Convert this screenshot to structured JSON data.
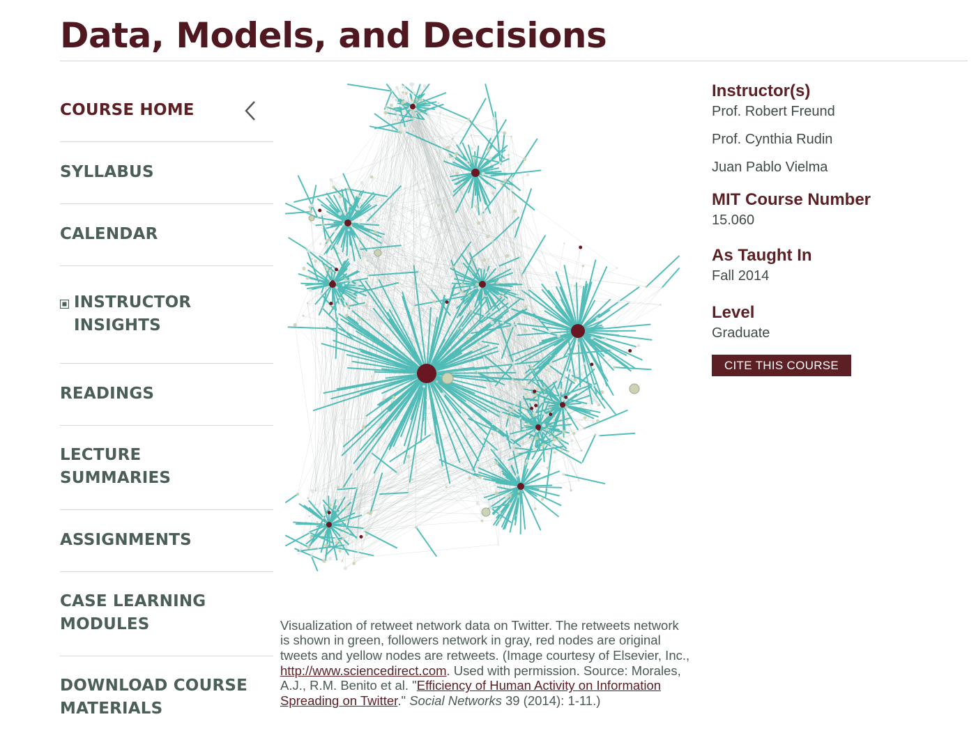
{
  "page": {
    "title": "Data, Models, and Decisions"
  },
  "sidebar": {
    "items": [
      {
        "label": "COURSE HOME"
      },
      {
        "label": "SYLLABUS"
      },
      {
        "label": "CALENDAR"
      },
      {
        "label": "INSTRUCTOR INSIGHTS"
      },
      {
        "label": "READINGS"
      },
      {
        "label": "LECTURE SUMMARIES"
      },
      {
        "label": "ASSIGNMENTS"
      },
      {
        "label": "CASE LEARNING MODULES"
      },
      {
        "label": "DOWNLOAD COURSE MATERIALS"
      }
    ]
  },
  "caption": {
    "part1": "Visualization of retweet network data on Twitter. The retweets network is shown in green, followers network in gray, red nodes are original tweets and yellow nodes are retweets. (Image courtesy of Elsevier, Inc., ",
    "link1": "http://www.sciencedirect.com",
    "part2": ". Used with permission. Source: Morales, A.J., R.M. Benito et al. \"",
    "link2": "Efficiency of Human Activity on Information Spreading on Twitter",
    "part3": ".\" ",
    "journal": "Social Networks",
    "part4": " 39 (2014): 1-11.)"
  },
  "info": {
    "instructors_heading": "Instructor(s)",
    "instructors": [
      "Prof. Robert Freund",
      "Prof. Cynthia Rudin",
      "Juan Pablo Vielma"
    ],
    "course_number_heading": "MIT Course Number",
    "course_number": "15.060",
    "taught_heading": "As Taught In",
    "taught": "Fall 2014",
    "level_heading": "Level",
    "level": "Graduate",
    "cite_label": "CITE THIS COURSE"
  },
  "colors": {
    "brand": "#5b1f24",
    "nav_text": "#4b5e57",
    "retweet_edge": "#35b3ad",
    "follower_edge": "#b9c2be",
    "original_node": "#6a1724",
    "retweet_node": "#cbd3b2"
  },
  "icons": {
    "collapse": "chevron-left-icon",
    "expand": "plus-square-icon"
  }
}
